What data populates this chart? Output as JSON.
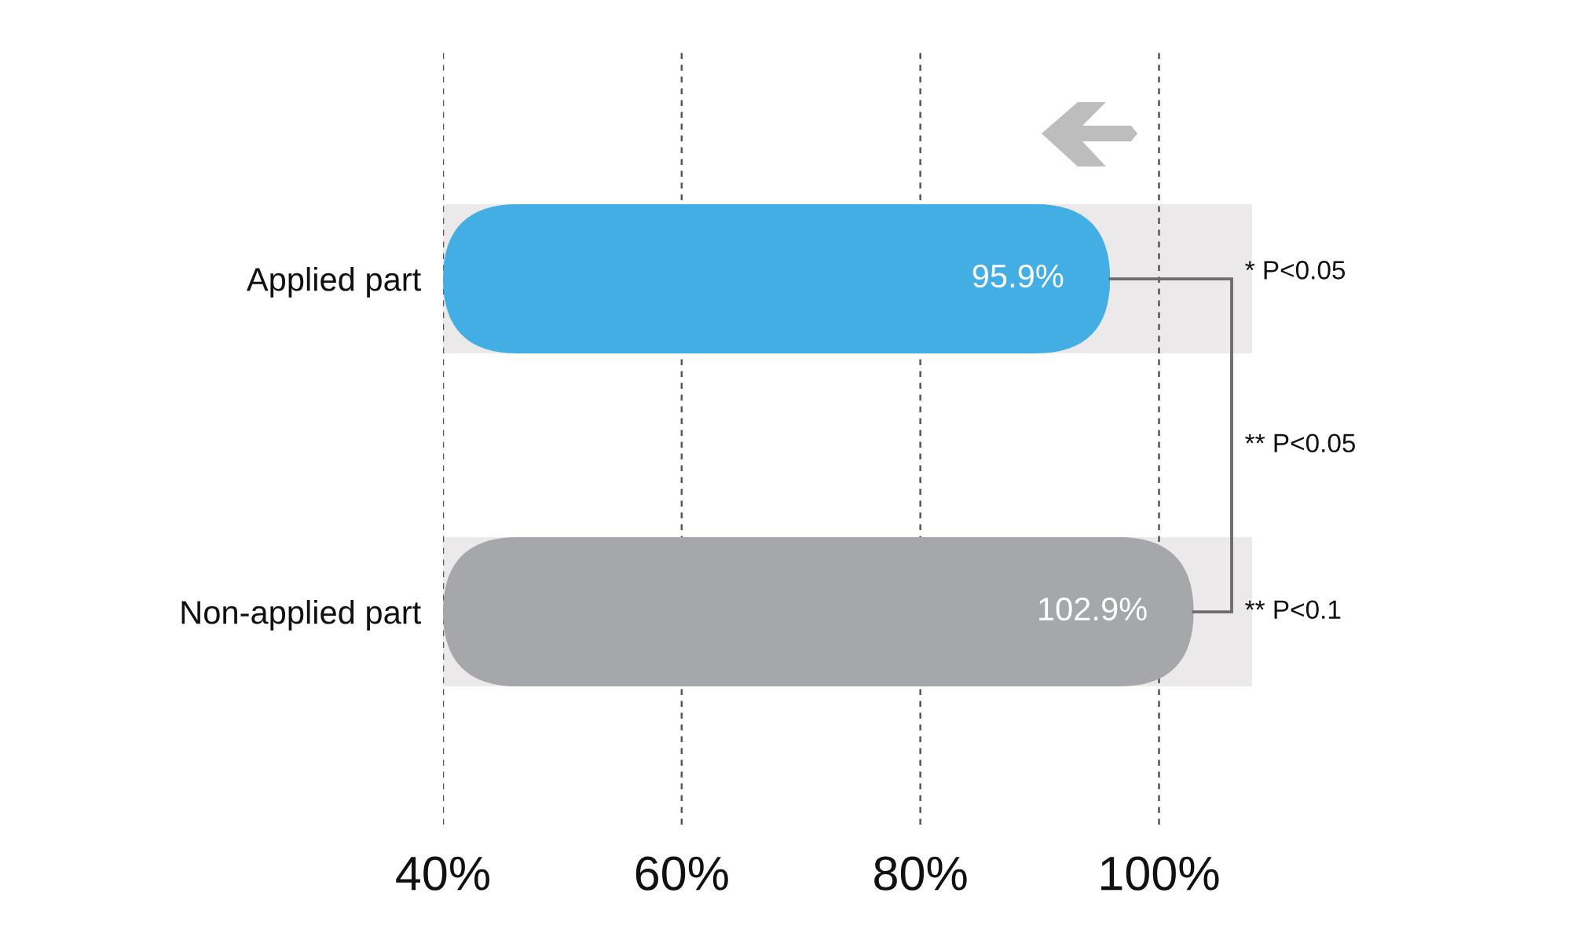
{
  "chart_data": {
    "type": "bar",
    "orientation": "horizontal",
    "categories": [
      "Applied part",
      "Non-applied part"
    ],
    "values": [
      95.9,
      102.9
    ],
    "colors": [
      "#42aee4",
      "#a6a7aa"
    ],
    "value_labels": [
      "95.9%",
      "102.9%"
    ],
    "xlim": [
      40,
      107.8
    ],
    "xticks": [
      {
        "value": 40,
        "label": "40%"
      },
      {
        "value": 60,
        "label": "60%"
      },
      {
        "value": 80,
        "label": "80%"
      },
      {
        "value": 100,
        "label": "100%"
      }
    ],
    "grid": "x",
    "bands": [
      {
        "axis": "y",
        "from": "Applied part",
        "to": "Applied part",
        "color": "#ebe9ea"
      },
      {
        "axis": "y",
        "from": "Non-applied part",
        "to": "Non-applied part",
        "color": "#ebe9ea"
      }
    ],
    "annotations": [
      "* P<0.05",
      "** P<0.05",
      "** P<0.1"
    ]
  }
}
